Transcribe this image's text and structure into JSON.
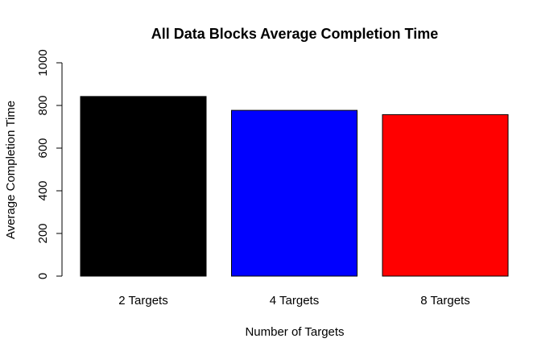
{
  "chart_data": {
    "type": "bar",
    "title": "All Data Blocks Average Completion Time",
    "xlabel": "Number of Targets",
    "ylabel": "Average Completion Time",
    "categories": [
      "2 Targets",
      "4 Targets",
      "8 Targets"
    ],
    "values": [
      842,
      777,
      757
    ],
    "colors": [
      "#000000",
      "#0000ff",
      "#ff0000"
    ],
    "ylim": [
      0,
      1000
    ],
    "yticks": [
      0,
      200,
      400,
      600,
      800,
      1000
    ],
    "ytick_labels": [
      "0",
      "200",
      "400",
      "600",
      "800",
      "1000"
    ],
    "grid": false,
    "legend": "none"
  }
}
